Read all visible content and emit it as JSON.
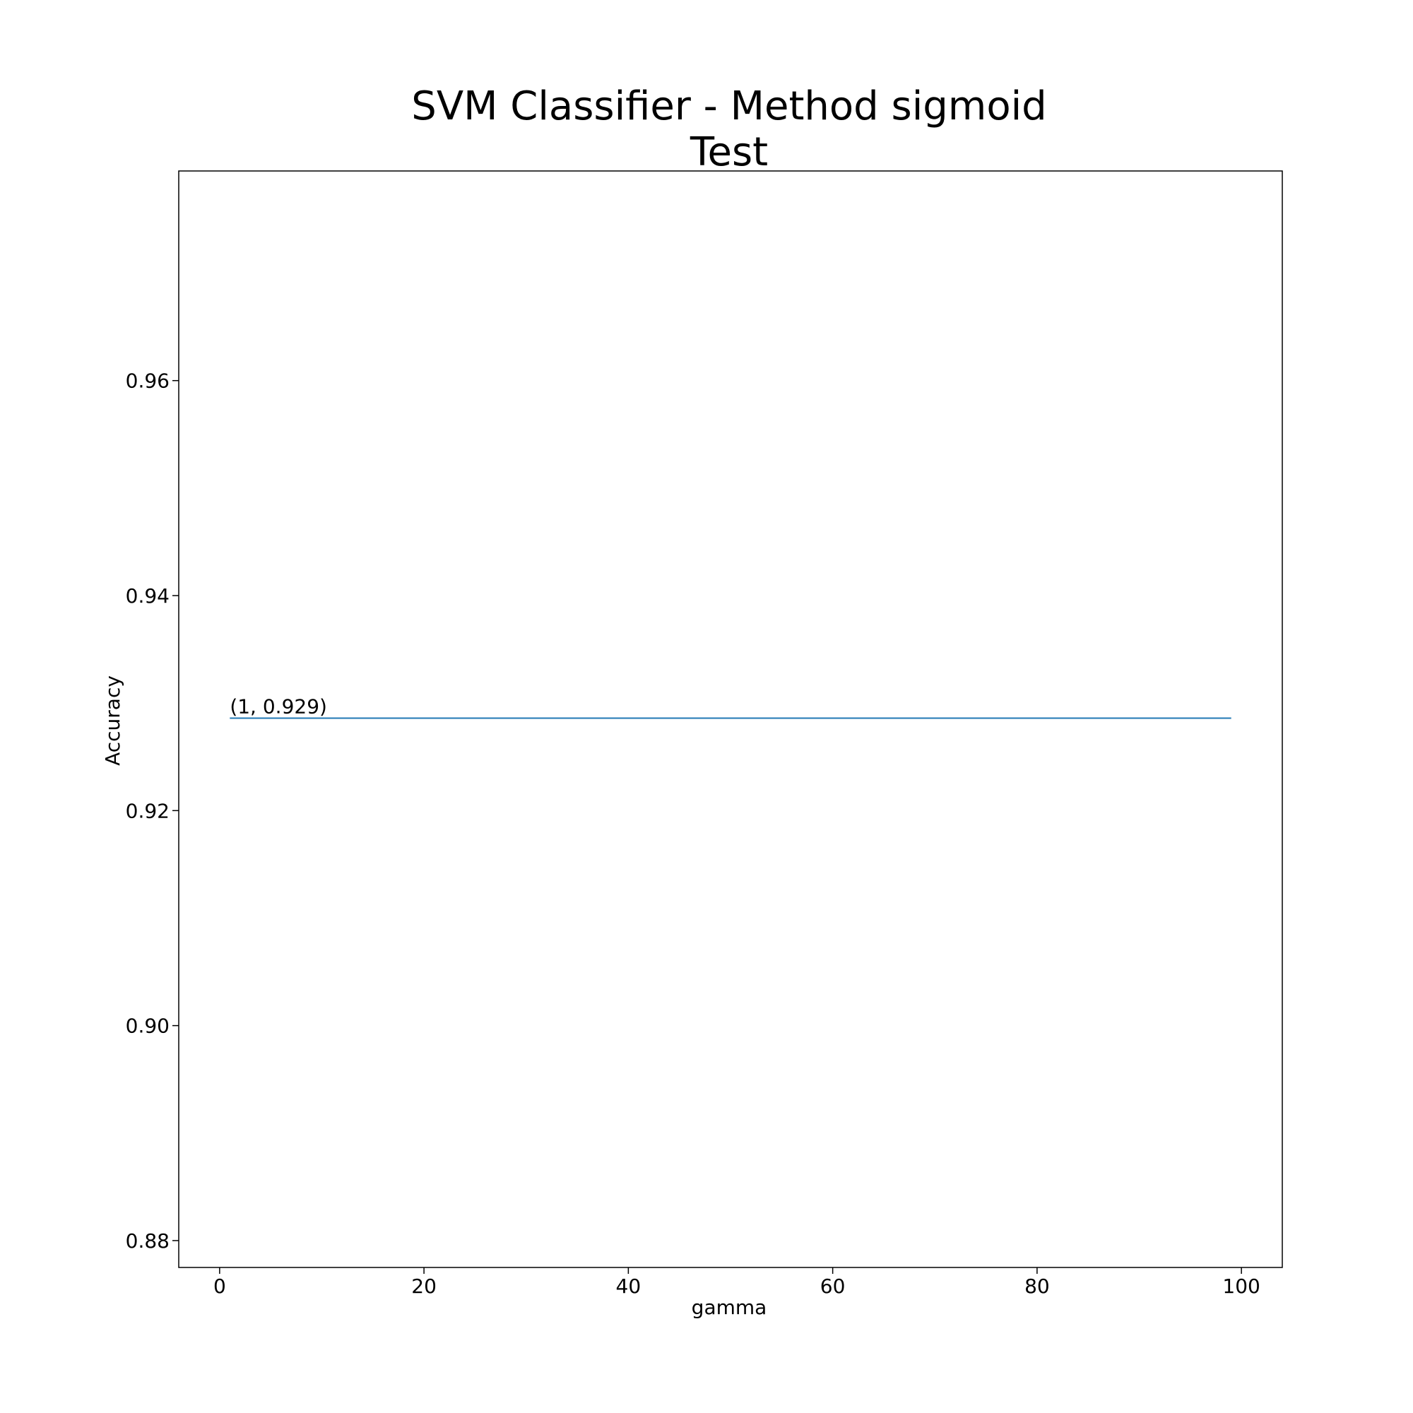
{
  "chart_data": {
    "type": "line",
    "title_line1": "SVM Classifier - Method sigmoid",
    "title_line2": "Test",
    "xlabel": "gamma",
    "ylabel": "Accuracy",
    "xlim": [
      -4,
      104
    ],
    "ylim": [
      0.8775,
      0.9795
    ],
    "x_ticks": [
      0,
      20,
      40,
      60,
      80,
      100
    ],
    "x_tick_labels": [
      "0",
      "20",
      "40",
      "60",
      "80",
      "100"
    ],
    "y_ticks": [
      0.88,
      0.9,
      0.92,
      0.94,
      0.96
    ],
    "y_tick_labels": [
      "0.88",
      "0.90",
      "0.92",
      "0.94",
      "0.96"
    ],
    "series": [
      {
        "color": "#1f77b4",
        "x": [
          1,
          99
        ],
        "y": [
          0.9286,
          0.9286
        ]
      }
    ],
    "annotations": [
      {
        "text": "(1, 0.929)",
        "x": 1,
        "y": 0.929
      }
    ],
    "grid": false,
    "legend": "none"
  }
}
